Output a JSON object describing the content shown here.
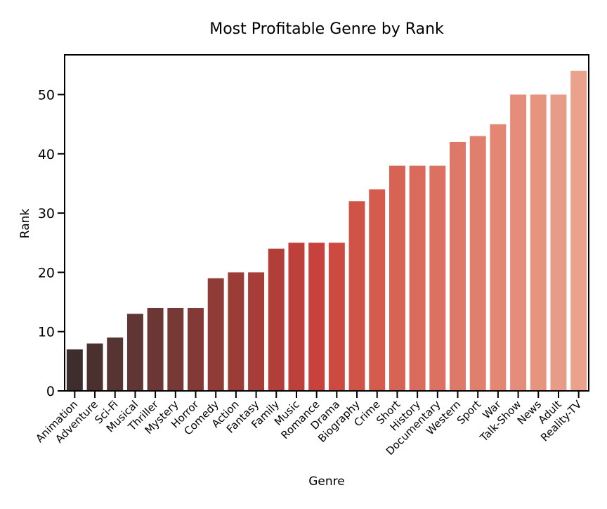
{
  "chart_data": {
    "type": "bar",
    "title": "Most Profitable Genre by Rank",
    "xlabel": "Genre",
    "ylabel": "Rank",
    "ylim": [
      0,
      56.7
    ],
    "yticks": [
      0,
      10,
      20,
      30,
      40,
      50
    ],
    "grid": false,
    "categories": [
      "Animation",
      "Adventure",
      "Sci-Fi",
      "Musical",
      "Thriller",
      "Mystery",
      "Horror",
      "Comedy",
      "Action",
      "Fantasy",
      "Family",
      "Music",
      "Romance",
      "Drama",
      "Biography",
      "Crime",
      "Short",
      "History",
      "Documentary",
      "Western",
      "Sport",
      "War",
      "Talk-Show",
      "News",
      "Adult",
      "Reality-TV"
    ],
    "values": [
      7,
      8,
      9,
      13,
      14,
      14,
      14,
      19,
      20,
      20,
      24,
      25,
      25,
      25,
      32,
      34,
      38,
      38,
      38,
      42,
      43,
      45,
      50,
      50,
      50,
      54
    ],
    "colors": [
      "#3d2d2d",
      "#4a3130",
      "#553432",
      "#603634",
      "#6b3734",
      "#773935",
      "#833a36",
      "#8f3b36",
      "#9b3c37",
      "#a63d38",
      "#b13e39",
      "#bd403a",
      "#c7423c",
      "#cc4a40",
      "#d05347",
      "#d35c4e",
      "#d76355",
      "#d96a5c",
      "#dc7162",
      "#de7868",
      "#e17f6e",
      "#e38674",
      "#e58d7a",
      "#e69480",
      "#e89b86",
      "#eaa28d"
    ]
  }
}
